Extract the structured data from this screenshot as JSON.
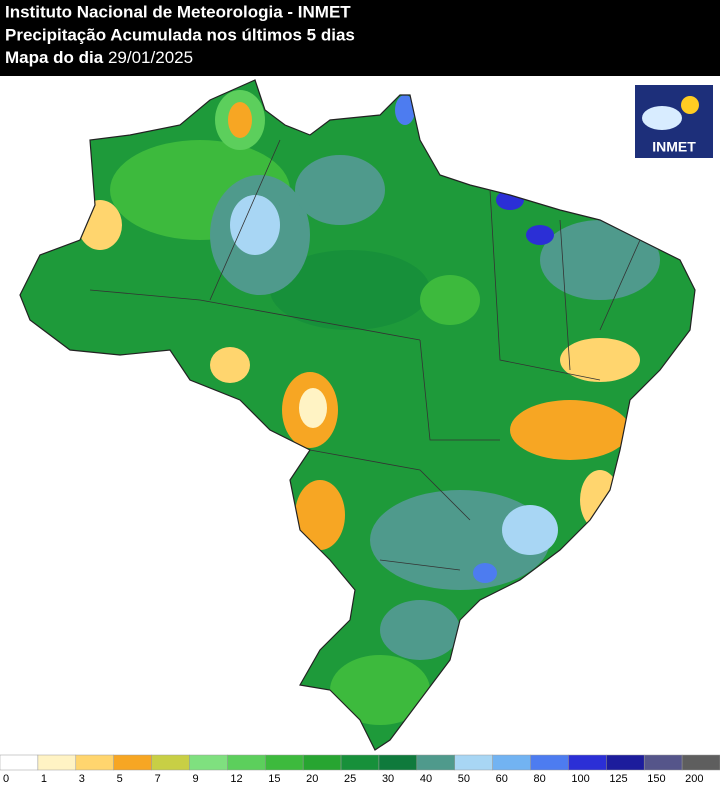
{
  "header": {
    "line1": "Instituto Nacional de Meteorologia - INMET",
    "line2": "Precipitação Acumulada nos últimos 5 dias",
    "line3_label": "Mapa do dia",
    "line3_date": "29/01/2025"
  },
  "logo": {
    "text": "INMET"
  },
  "legend": {
    "ticks": [
      0,
      1,
      3,
      5,
      7,
      9,
      12,
      15,
      20,
      25,
      30,
      40,
      50,
      60,
      80,
      100,
      125,
      150,
      200
    ],
    "colors": [
      "#ffffff",
      "#fff3c4",
      "#ffd56e",
      "#f7a623",
      "#c8cf45",
      "#7fe07f",
      "#5ccf5c",
      "#3dba3d",
      "#27a531",
      "#17903a",
      "#0f7a3c",
      "#4f9a8c",
      "#a8d6f4",
      "#72b3f2",
      "#4d7cf0",
      "#2b2fd6",
      "#1c1c9c",
      "#55558a",
      "#5e5e5e"
    ]
  }
}
